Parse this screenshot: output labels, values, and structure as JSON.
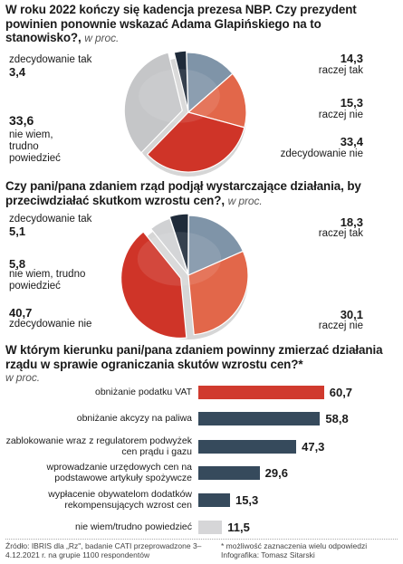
{
  "q1": {
    "title": "W roku 2022 kończy się kadencja prezesa NBP. Czy prezydent powinien ponownie wskazać Adama Glapińskiego na to stanowisko?,",
    "unit": "w proc."
  },
  "q2": {
    "title": "Czy pani/pana zdaniem rząd podjął wystarczające działania, by przeciwdziałać skutkom wzrostu cen?,",
    "unit": "w proc."
  },
  "q3": {
    "title": "W którym kierunku pani/pana zdaniem powinny zmierzać działania rządu w sprawie ograniczania skutów wzrostu cen?*",
    "unit": "w proc."
  },
  "chart_data": [
    {
      "type": "pie",
      "slices": [
        {
          "label": "zdecydowanie tak",
          "value": 3.4,
          "value_text": "3,4",
          "color": "#1f2b3a"
        },
        {
          "label": "raczej tak",
          "value": 14.3,
          "value_text": "14,3",
          "color": "#7f94a8"
        },
        {
          "label": "raczej nie",
          "value": 15.3,
          "value_text": "15,3",
          "color": "#e2674a"
        },
        {
          "label": "zdecydowanie nie",
          "value": 33.4,
          "value_text": "33,4",
          "color": "#cf3428"
        },
        {
          "label": "nie wiem, trudno powiedzieć",
          "value": 33.6,
          "value_text": "33,6",
          "color": "#c5c6c8"
        }
      ]
    },
    {
      "type": "pie",
      "slices": [
        {
          "label": "zdecydowanie tak",
          "value": 5.1,
          "value_text": "5,1",
          "color": "#1f2b3a"
        },
        {
          "label": "raczej tak",
          "value": 18.3,
          "value_text": "18,3",
          "color": "#7f94a8"
        },
        {
          "label": "raczej nie",
          "value": 30.1,
          "value_text": "30,1",
          "color": "#e2674a"
        },
        {
          "label": "zdecydowanie nie",
          "value": 40.7,
          "value_text": "40,7",
          "color": "#cf3428"
        },
        {
          "label": "nie wiem, trudno powiedzieć",
          "value": 5.8,
          "value_text": "5,8",
          "color": "#d0d1d3"
        }
      ]
    },
    {
      "type": "bar",
      "orientation": "horizontal",
      "xlim": [
        0,
        70
      ],
      "bars": [
        {
          "label": "obniżanie podatku VAT",
          "value": 60.7,
          "value_text": "60,7",
          "color": "#d03a2e"
        },
        {
          "label": "obniżanie akcyzy na paliwa",
          "value": 58.8,
          "value_text": "58,8",
          "color": "#364a5c"
        },
        {
          "label": "zablokowanie wraz z regulatorem podwyżek cen prądu i gazu",
          "value": 47.3,
          "value_text": "47,3",
          "color": "#364a5c"
        },
        {
          "label": "wprowadzanie urzędowych cen na podstawowe artykuły spożywcze",
          "value": 29.6,
          "value_text": "29,6",
          "color": "#364a5c"
        },
        {
          "label": "wypłacenie obywatelom dodatków rekompensujących wzrost cen",
          "value": 15.3,
          "value_text": "15,3",
          "color": "#364a5c"
        },
        {
          "label": "nie wiem/trudno powiedzieć",
          "value": 11.5,
          "value_text": "11,5",
          "color": "#d6d6d8"
        }
      ]
    }
  ],
  "footer": {
    "source": "Źródło: IBRIS dla „Rz\", badanie CATI przeprowadzone 3–4.12.2021 r. na grupie 1100 respondentów",
    "note": "* możliwość zaznaczenia wielu odpowiedzi",
    "credit": "Infografika: Tomasz Sitarski"
  }
}
